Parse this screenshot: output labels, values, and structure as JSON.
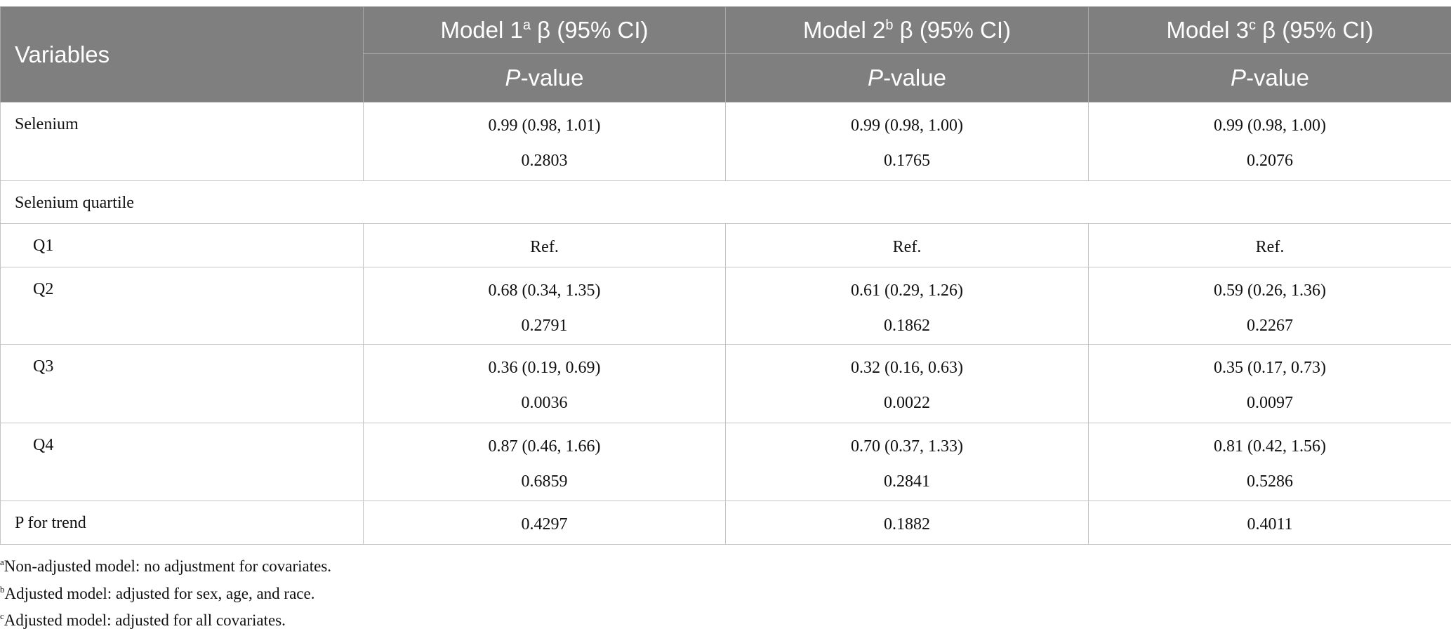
{
  "table": {
    "header": {
      "variables": "Variables",
      "models": [
        {
          "name": "Model 1",
          "sup": "a",
          "stat": "β (95% CI)"
        },
        {
          "name": "Model 2",
          "sup": "b",
          "stat": "β (95% CI)"
        },
        {
          "name": "Model 3",
          "sup": "c",
          "stat": "β (95% CI)"
        }
      ],
      "p_italic": "P",
      "p_rest": "-value"
    },
    "rows": [
      {
        "label": "Selenium",
        "cells": [
          [
            "0.99 (0.98, 1.01)",
            "0.2803"
          ],
          [
            "0.99 (0.98, 1.00)",
            "0.1765"
          ],
          [
            "0.99 (0.98, 1.00)",
            "0.2076"
          ]
        ]
      },
      {
        "label": "Selenium quartile"
      },
      {
        "label": "Q1",
        "indent": true,
        "cells": [
          [
            "Ref."
          ],
          [
            "Ref."
          ],
          [
            "Ref."
          ]
        ]
      },
      {
        "label": "Q2",
        "indent": true,
        "cells": [
          [
            "0.68 (0.34, 1.35)",
            "0.2791"
          ],
          [
            "0.61 (0.29, 1.26)",
            "0.1862"
          ],
          [
            "0.59 (0.26, 1.36)",
            "0.2267"
          ]
        ]
      },
      {
        "label": "Q3",
        "indent": true,
        "cells": [
          [
            "0.36 (0.19, 0.69)",
            "0.0036"
          ],
          [
            "0.32 (0.16, 0.63)",
            "0.0022"
          ],
          [
            "0.35 (0.17, 0.73)",
            "0.0097"
          ]
        ]
      },
      {
        "label": "Q4",
        "indent": true,
        "cells": [
          [
            "0.87 (0.46, 1.66)",
            "0.6859"
          ],
          [
            "0.70 (0.37, 1.33)",
            "0.2841"
          ],
          [
            "0.81 (0.42, 1.56)",
            "0.5286"
          ]
        ]
      },
      {
        "label": "P for trend",
        "cells": [
          [
            "0.4297"
          ],
          [
            "0.1882"
          ],
          [
            "0.4011"
          ]
        ]
      }
    ]
  },
  "footnotes": [
    {
      "sup": "a",
      "text": "Non-adjusted model: no adjustment for covariates."
    },
    {
      "sup": "b",
      "text": "Adjusted model: adjusted for sex, age, and race."
    },
    {
      "sup": "c",
      "text": "Adjusted model: adjusted for all covariates."
    }
  ]
}
